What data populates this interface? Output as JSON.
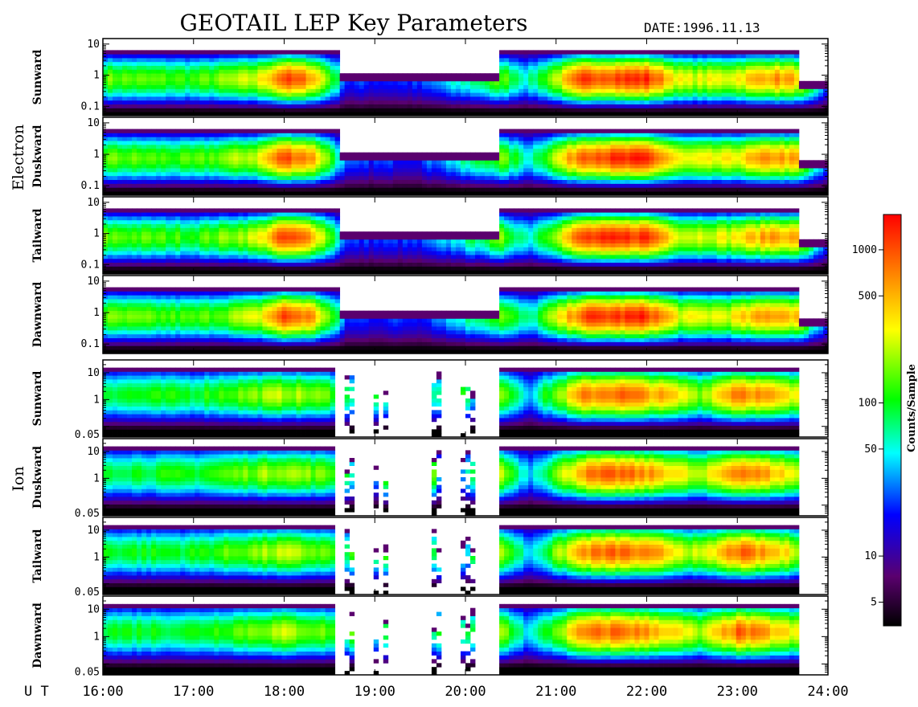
{
  "title": "GEOTAIL LEP Key Parameters",
  "date_label": "DATE:",
  "date_value": "1996.11.13",
  "x_axis_prefix": "U T",
  "colorbar_label": "Counts/Sample",
  "chart_data": {
    "type": "heatmap",
    "x_axis": {
      "unit": "UT hours",
      "range": [
        16,
        24
      ],
      "tick_values": [
        16,
        17,
        18,
        19,
        20,
        21,
        22,
        23,
        24
      ],
      "tick_labels": [
        "16:00",
        "17:00",
        "18:00",
        "19:00",
        "20:00",
        "21:00",
        "22:00",
        "23:00",
        "24:00"
      ]
    },
    "colorbar": {
      "scale": "log",
      "range": [
        3.5,
        1700
      ],
      "tick_values": [
        5,
        10,
        50,
        100,
        500,
        1000
      ],
      "tick_labels": [
        "5",
        "10",
        "50",
        "100",
        "500",
        "1000"
      ]
    },
    "groups": [
      {
        "name": "Electron",
        "y_scale": "log",
        "y_range": [
          0.05,
          15
        ],
        "y_ticks": [
          0.1,
          1,
          10
        ],
        "y_tick_labels": [
          "0.1",
          "1",
          "10"
        ],
        "panels": [
          "Sunward",
          "Duskward",
          "Tailward",
          "Dawnward"
        ]
      },
      {
        "name": "Ion",
        "y_scale": "log",
        "y_range": [
          0.04,
          30
        ],
        "y_ticks": [
          0.05,
          1,
          10
        ],
        "y_tick_labels": [
          "0.05",
          "1",
          "10"
        ],
        "panels": [
          "Sunward",
          "Duskward",
          "Tailward",
          "Dawnward"
        ]
      }
    ],
    "electron_profile": {
      "x": [
        16.0,
        17.0,
        17.7,
        18.0,
        18.3,
        18.55,
        18.7,
        19.5,
        20.4,
        20.7,
        21.3,
        22.0,
        22.4,
        22.9,
        23.4,
        23.67,
        24.0
      ],
      "peak_level": [
        0.62,
        0.58,
        0.7,
        0.93,
        0.85,
        0.55,
        0.3,
        0.3,
        0.62,
        0.45,
        0.93,
        0.96,
        0.7,
        0.72,
        0.85,
        0.8,
        0.35
      ]
    },
    "ion_profile": {
      "x": [
        16.0,
        17.0,
        17.5,
        18.0,
        18.55,
        20.4,
        20.7,
        21.3,
        21.7,
        22.2,
        22.6,
        23.0,
        23.4,
        23.67
      ],
      "peak_level": [
        0.55,
        0.55,
        0.62,
        0.68,
        0.6,
        0.68,
        0.4,
        0.85,
        0.9,
        0.8,
        0.65,
        0.9,
        0.8,
        0.7
      ]
    },
    "ion_coverage": [
      [
        16.0,
        18.58
      ],
      [
        20.35,
        23.68
      ]
    ],
    "ion_sparse_bursts": [
      18.72,
      19.03,
      19.12,
      19.65,
      19.72,
      19.96,
      20.05
    ]
  }
}
